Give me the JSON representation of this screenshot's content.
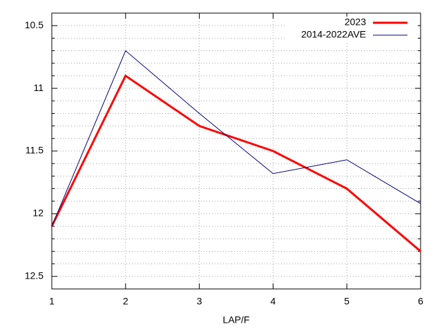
{
  "chart_data": {
    "type": "line",
    "xlabel": "LAP/F",
    "x": [
      1,
      2,
      3,
      4,
      5,
      6
    ],
    "series": [
      {
        "name": "2023",
        "color": "#ff0000",
        "values": [
          12.1,
          10.9,
          11.3,
          11.5,
          11.8,
          12.3
        ]
      },
      {
        "name": "2014-2022AVE",
        "color": "#000080",
        "values": [
          12.1,
          10.7,
          11.2,
          11.68,
          11.57,
          11.92
        ]
      }
    ],
    "xlim": [
      1,
      6
    ],
    "xticks": [
      1,
      2,
      3,
      4,
      5,
      6
    ],
    "ylim": [
      10.4,
      12.6
    ],
    "y_reversed": true,
    "yticks": [
      10.5,
      11,
      11.5,
      12,
      12.5
    ],
    "minor_yticks": [
      10.6,
      10.7,
      10.8,
      10.9,
      11.1,
      11.2,
      11.3,
      11.4,
      11.6,
      11.7,
      11.8,
      11.9,
      12.1,
      12.2,
      12.3,
      12.4
    ],
    "grid": true,
    "legend": "top-right"
  }
}
